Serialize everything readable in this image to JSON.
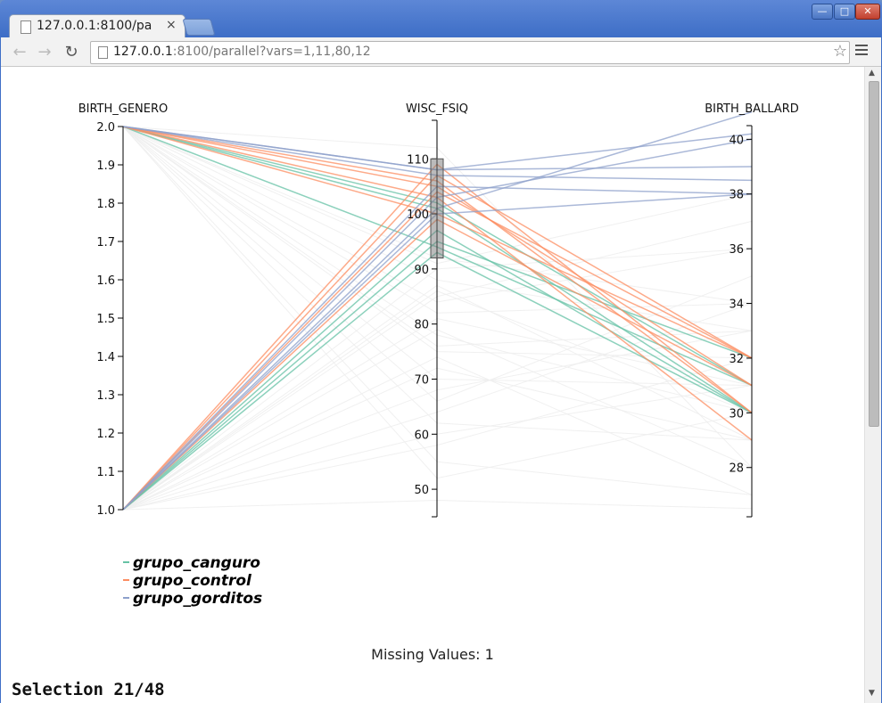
{
  "browser": {
    "tab_title": "127.0.0.1:8100/pa",
    "tab_close": "×",
    "url_host": "127.0.0.1",
    "url_rest": ":8100/parallel?vars=1,11,80,12",
    "back_glyph": "←",
    "forward_glyph": "→",
    "reload_glyph": "↻",
    "star_glyph": "☆",
    "win_min": "—",
    "win_max": "□",
    "win_close": "✕"
  },
  "page": {
    "missing_values": "Missing Values: 1",
    "selection": "Selection 21/48"
  },
  "colors": {
    "grupo_canguro": "#66c2a5",
    "grupo_control": "#fc8d62",
    "grupo_gorditos": "#8da0cb",
    "background_lines": "#eeeeee"
  },
  "chart_data": {
    "type": "parallel-coordinates",
    "axes": [
      {
        "name": "BIRTH_GENERO",
        "range": [
          1.0,
          2.0
        ],
        "ticks": [
          "2.0",
          "1.9",
          "1.8",
          "1.7",
          "1.6",
          "1.5",
          "1.4",
          "1.3",
          "1.2",
          "1.1",
          "1.0"
        ]
      },
      {
        "name": "WISC_FSIQ",
        "range": [
          45,
          117
        ],
        "ticks": [
          "110",
          "100",
          "90",
          "80",
          "70",
          "60",
          "50"
        ],
        "brush": [
          92,
          110
        ]
      },
      {
        "name": "BIRTH_BALLARD",
        "range": [
          26.2,
          40.5
        ],
        "ticks": [
          "40",
          "38",
          "36",
          "34",
          "32",
          "30",
          "28"
        ]
      }
    ],
    "legend": [
      "grupo_canguro",
      "grupo_control",
      "grupo_gorditos"
    ],
    "series": [
      {
        "name": "grupo_canguro",
        "lines": [
          [
            2,
            101,
            30
          ],
          [
            2,
            94,
            31
          ],
          [
            1,
            95,
            32
          ],
          [
            1,
            93,
            30
          ],
          [
            2,
            102,
            31
          ],
          [
            1,
            97,
            30
          ]
        ]
      },
      {
        "name": "grupo_control",
        "lines": [
          [
            2,
            103,
            29
          ],
          [
            1,
            107,
            32
          ],
          [
            1,
            109,
            30
          ],
          [
            2,
            105,
            31
          ],
          [
            1,
            104,
            32
          ],
          [
            2,
            106,
            30
          ],
          [
            1,
            99,
            31
          ],
          [
            2,
            100,
            32
          ]
        ]
      },
      {
        "name": "grupo_gorditos",
        "lines": [
          [
            2,
            108,
            39
          ],
          [
            1,
            103,
            40
          ],
          [
            1,
            105,
            38
          ],
          [
            2,
            108,
            40.2
          ],
          [
            1,
            100,
            38
          ],
          [
            1,
            101,
            41
          ],
          [
            2,
            107,
            38.5
          ]
        ]
      }
    ],
    "background_lines": [
      [
        2,
        112,
        28
      ],
      [
        2,
        88,
        33
      ],
      [
        1,
        85,
        37
      ],
      [
        2,
        78,
        30
      ],
      [
        1,
        72,
        29
      ],
      [
        2,
        66,
        35
      ],
      [
        1,
        60,
        31
      ],
      [
        2,
        55,
        27
      ],
      [
        1,
        48,
        26.5
      ],
      [
        2,
        82,
        34
      ],
      [
        1,
        90,
        36
      ],
      [
        2,
        75,
        32
      ],
      [
        1,
        68,
        33
      ],
      [
        2,
        62,
        29
      ],
      [
        1,
        86,
        30
      ],
      [
        2,
        70,
        31
      ],
      [
        1,
        79,
        28
      ],
      [
        2,
        92,
        34
      ],
      [
        1,
        58,
        32
      ],
      [
        2,
        84,
        36
      ],
      [
        1,
        74,
        27
      ],
      [
        2,
        52,
        30
      ],
      [
        1,
        64,
        34
      ],
      [
        2,
        91,
        38
      ],
      [
        1,
        87,
        29
      ],
      [
        2,
        76,
        33
      ],
      [
        1,
        81,
        31
      ]
    ]
  }
}
